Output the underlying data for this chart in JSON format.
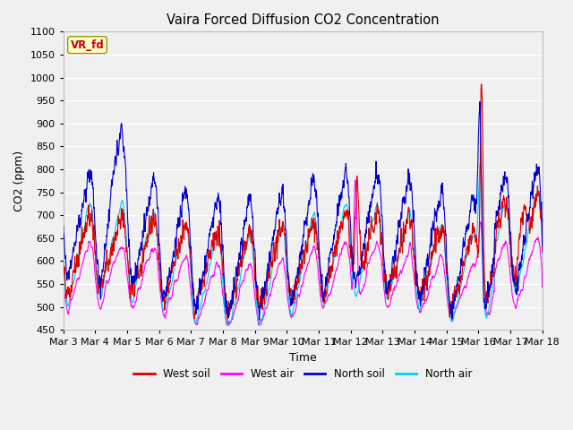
{
  "title": "Vaira Forced Diffusion CO2 Concentration",
  "xlabel": "Time",
  "ylabel": "CO2 (ppm)",
  "ylim": [
    450,
    1100
  ],
  "yticks": [
    450,
    500,
    550,
    600,
    650,
    700,
    750,
    800,
    850,
    900,
    950,
    1000,
    1050,
    1100
  ],
  "label_text": "VR_fd",
  "label_bg": "#ffffcc",
  "label_border": "#999900",
  "label_color": "#cc0000",
  "colors": {
    "west_soil": "#dd0000",
    "west_air": "#ff00ff",
    "north_soil": "#0000cc",
    "north_air": "#00ccee"
  },
  "legend_labels": [
    "West soil",
    "West air",
    "North soil",
    "North air"
  ],
  "x_tick_labels": [
    "Mar 3",
    "Mar 4",
    "Mar 5",
    "Mar 6",
    "Mar 7",
    "Mar 8",
    "Mar 9",
    "Mar 10",
    "Mar 11",
    "Mar 12",
    "Mar 13",
    "Mar 14",
    "Mar 15",
    "Mar 16",
    "Mar 17",
    "Mar 18"
  ],
  "plot_bg": "#f0f0f0",
  "grid_color": "#ffffff",
  "line_width": 0.8,
  "n_points": 4320,
  "days": 15
}
